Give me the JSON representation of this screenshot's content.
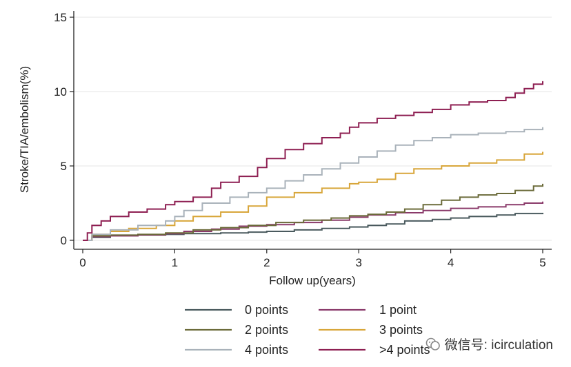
{
  "chart_data": {
    "type": "line",
    "xlabel": "Follow up(years)",
    "ylabel": "Stroke/TIA/embolism(%)",
    "xlim": [
      0,
      5
    ],
    "ylim": [
      0,
      15
    ],
    "xticks": [
      "0",
      "1",
      "2",
      "3",
      "4",
      "5"
    ],
    "yticks": [
      "0",
      "5",
      "10",
      "15"
    ],
    "grid": true,
    "legend_position": "bottom",
    "series": [
      {
        "name": "0 points",
        "color": "#4a5a5e",
        "x": [
          0,
          0.1,
          0.3,
          0.6,
          0.9,
          1.1,
          1.5,
          1.8,
          2.0,
          2.3,
          2.6,
          2.9,
          3.1,
          3.3,
          3.5,
          3.8,
          4.0,
          4.2,
          4.5,
          4.7,
          5.0
        ],
        "y": [
          0,
          0.2,
          0.3,
          0.35,
          0.4,
          0.45,
          0.5,
          0.55,
          0.6,
          0.7,
          0.8,
          0.9,
          1.0,
          1.1,
          1.3,
          1.4,
          1.5,
          1.6,
          1.7,
          1.8,
          1.85
        ]
      },
      {
        "name": "1 point",
        "color": "#8a3a6a",
        "x": [
          0,
          0.1,
          0.3,
          0.6,
          0.9,
          1.1,
          1.4,
          1.7,
          2.0,
          2.3,
          2.6,
          2.9,
          3.1,
          3.4,
          3.7,
          4.0,
          4.3,
          4.6,
          4.8,
          5.0
        ],
        "y": [
          0,
          0.25,
          0.3,
          0.35,
          0.45,
          0.6,
          0.75,
          0.95,
          1.05,
          1.2,
          1.35,
          1.55,
          1.7,
          1.85,
          2.0,
          2.15,
          2.25,
          2.4,
          2.5,
          2.6
        ]
      },
      {
        "name": "2 points",
        "color": "#6b6b3a",
        "x": [
          0,
          0.1,
          0.3,
          0.6,
          0.9,
          1.2,
          1.5,
          1.8,
          2.1,
          2.4,
          2.7,
          2.9,
          3.1,
          3.3,
          3.5,
          3.7,
          3.9,
          4.1,
          4.3,
          4.5,
          4.7,
          4.9,
          5.0
        ],
        "y": [
          0,
          0.3,
          0.35,
          0.4,
          0.5,
          0.7,
          0.85,
          1.0,
          1.2,
          1.35,
          1.5,
          1.65,
          1.75,
          1.9,
          2.1,
          2.4,
          2.7,
          2.9,
          3.05,
          3.15,
          3.35,
          3.65,
          3.8
        ]
      },
      {
        "name": "3 points",
        "color": "#d8a63a",
        "x": [
          0,
          0.1,
          0.3,
          0.5,
          0.8,
          1.0,
          1.2,
          1.5,
          1.8,
          2.0,
          2.3,
          2.6,
          2.9,
          3.0,
          3.2,
          3.4,
          3.6,
          3.9,
          4.2,
          4.5,
          4.8,
          5.0
        ],
        "y": [
          0,
          0.4,
          0.6,
          0.8,
          1.0,
          1.3,
          1.6,
          1.9,
          2.3,
          2.9,
          3.2,
          3.5,
          3.8,
          3.9,
          4.1,
          4.5,
          4.8,
          5.0,
          5.2,
          5.4,
          5.8,
          5.95
        ]
      },
      {
        "name": "4 points",
        "color": "#a9b2ba",
        "x": [
          0,
          0.1,
          0.3,
          0.6,
          0.9,
          1.0,
          1.1,
          1.3,
          1.6,
          1.8,
          2.0,
          2.2,
          2.4,
          2.6,
          2.8,
          3.0,
          3.2,
          3.4,
          3.6,
          3.8,
          4.0,
          4.3,
          4.6,
          4.8,
          5.0
        ],
        "y": [
          0,
          0.4,
          0.7,
          1.0,
          1.3,
          1.6,
          2.0,
          2.5,
          2.9,
          3.2,
          3.5,
          4.0,
          4.4,
          4.8,
          5.2,
          5.6,
          6.0,
          6.4,
          6.7,
          6.9,
          7.1,
          7.2,
          7.3,
          7.45,
          7.6
        ]
      },
      {
        "name": ">4 points",
        "color": "#8e1f52",
        "x": [
          0,
          0.05,
          0.1,
          0.2,
          0.3,
          0.5,
          0.7,
          0.9,
          1.0,
          1.2,
          1.4,
          1.5,
          1.7,
          1.9,
          2.0,
          2.2,
          2.4,
          2.6,
          2.8,
          2.9,
          3.0,
          3.2,
          3.4,
          3.6,
          3.8,
          4.0,
          4.2,
          4.4,
          4.6,
          4.7,
          4.8,
          4.9,
          5.0
        ],
        "y": [
          0,
          0.5,
          1.0,
          1.3,
          1.6,
          1.9,
          2.1,
          2.4,
          2.6,
          2.9,
          3.5,
          3.9,
          4.3,
          4.9,
          5.5,
          6.1,
          6.5,
          6.9,
          7.2,
          7.6,
          7.9,
          8.2,
          8.4,
          8.6,
          8.8,
          9.1,
          9.3,
          9.4,
          9.6,
          9.9,
          10.2,
          10.5,
          10.7
        ]
      }
    ]
  },
  "watermark": {
    "text": "微信号: icirculation",
    "icon": "wechat-icon"
  }
}
